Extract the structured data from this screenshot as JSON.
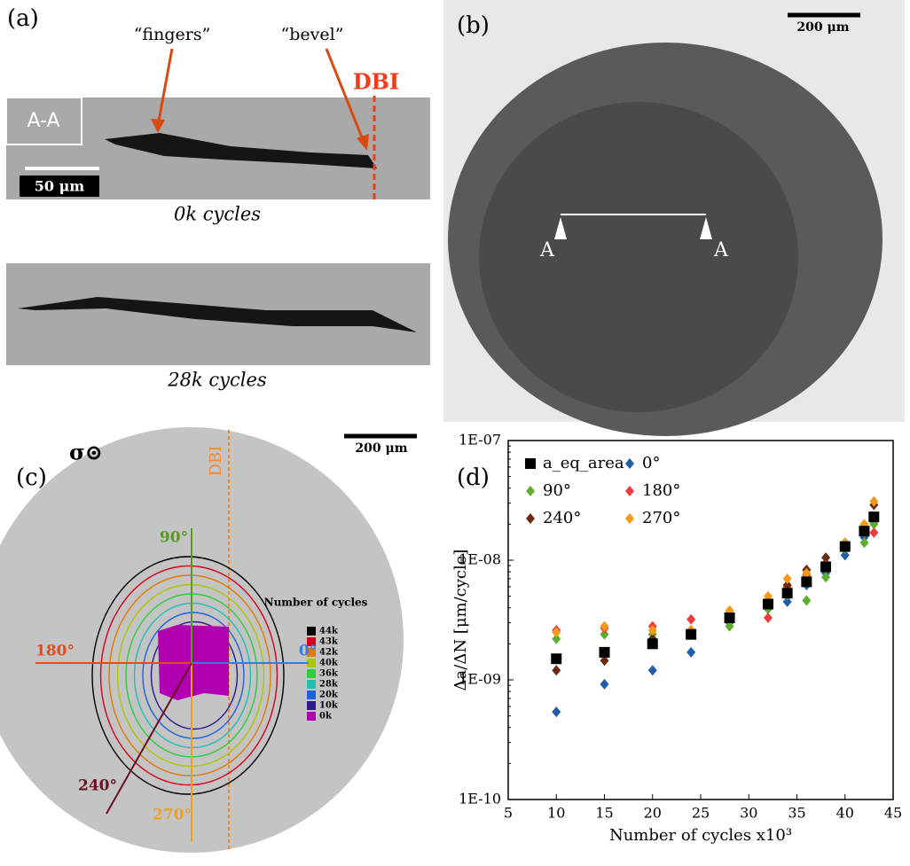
{
  "panel_a": {
    "label": "(a)",
    "annotations": [
      "“fingers”",
      "“bevel”"
    ],
    "dbi": "DBI",
    "section": "A-A",
    "scale_bar": "50 μm",
    "captions": [
      "0k cycles",
      "28k cycles"
    ]
  },
  "panel_b": {
    "label": "(b)",
    "scale_bar": "200 μm",
    "section_marks": [
      "A",
      "A"
    ]
  },
  "panel_c": {
    "label": "(c)",
    "symbol": "σ⊙",
    "dbi": "DBI",
    "scale_bar": "200 μm",
    "angles": [
      {
        "label": "90°",
        "color": "#5a9a1a"
      },
      {
        "label": "0°",
        "color": "#3a7ae0"
      },
      {
        "label": "180°",
        "color": "#e84a1a"
      },
      {
        "label": "270°",
        "color": "#f0a020"
      },
      {
        "label": "240°",
        "color": "#6a1020"
      }
    ],
    "legend_title": "Number of cycles",
    "legend": [
      {
        "name": "44k",
        "color": "#000000"
      },
      {
        "name": "43k",
        "color": "#d6001c"
      },
      {
        "name": "42k",
        "color": "#e07b00"
      },
      {
        "name": "40k",
        "color": "#a8c800"
      },
      {
        "name": "36k",
        "color": "#2fcc3c"
      },
      {
        "name": "28k",
        "color": "#1fc0b0"
      },
      {
        "name": "20k",
        "color": "#2060e0"
      },
      {
        "name": "10k",
        "color": "#2b1b8f"
      },
      {
        "name": "0k",
        "color": "#b000b0"
      }
    ]
  },
  "chart_data": {
    "type": "scatter",
    "label": "(d)",
    "x_label": "Number of cycles x10³",
    "y_label": "Δa/ΔN [μm/cycle]",
    "log_y": true,
    "x": [
      10,
      15,
      20,
      24,
      28,
      32,
      34,
      36,
      38,
      40,
      42,
      43
    ],
    "series": [
      {
        "name": "a_eq_area",
        "color": "#000000",
        "marker": "square",
        "values": [
          1.5e-09,
          1.7e-09,
          2e-09,
          2.4e-09,
          3.3e-09,
          4.3e-09,
          5.3e-09,
          6.6e-09,
          8.8e-09,
          1.3e-08,
          1.75e-08,
          2.3e-08
        ]
      },
      {
        "name": "0°",
        "color": "#1f5fa8",
        "marker": "diamond",
        "values": [
          5.4e-10,
          9.2e-10,
          1.2e-09,
          1.7e-09,
          3e-09,
          4.3e-09,
          4.5e-09,
          6.2e-09,
          7.8e-09,
          1.1e-08,
          1.55e-08,
          2.1e-08
        ]
      },
      {
        "name": "90°",
        "color": "#5cae2e",
        "marker": "diamond",
        "values": [
          2.2e-09,
          2.4e-09,
          2.4e-09,
          2.6e-09,
          2.8e-09,
          3.9e-09,
          5.1e-09,
          4.6e-09,
          7.2e-09,
          1.25e-08,
          1.4e-08,
          2e-08
        ]
      },
      {
        "name": "180°",
        "color": "#f03c3c",
        "marker": "diamond",
        "values": [
          2.6e-09,
          2.7e-09,
          2.8e-09,
          3.2e-09,
          3.5e-09,
          3.3e-09,
          6e-09,
          7.5e-09,
          9.5e-09,
          1.35e-08,
          1.7e-08,
          1.7e-08
        ]
      },
      {
        "name": "240°",
        "color": "#6e2a10",
        "marker": "diamond",
        "values": [
          1.2e-09,
          1.45e-09,
          2.2e-09,
          2.5e-09,
          3.6e-09,
          4.6e-09,
          6.2e-09,
          8.3e-09,
          1.05e-08,
          1.4e-08,
          1.9e-08,
          2.9e-08
        ]
      },
      {
        "name": "270°",
        "color": "#f39a1a",
        "marker": "diamond",
        "values": [
          2.5e-09,
          2.8e-09,
          2.6e-09,
          2.6e-09,
          3.8e-09,
          5e-09,
          7e-09,
          7.8e-09,
          9e-09,
          1.4e-08,
          2e-08,
          3.1e-08
        ]
      }
    ],
    "xlim": [
      5,
      45
    ],
    "xticks": [
      5,
      10,
      15,
      20,
      25,
      30,
      35,
      40,
      45
    ],
    "ylim": [
      1e-10,
      1e-07
    ],
    "yticks": [
      {
        "value": 1e-10,
        "label": "1E-10"
      },
      {
        "value": 1e-09,
        "label": "1E-09"
      },
      {
        "value": 1e-08,
        "label": "1E-08"
      },
      {
        "value": 1e-07,
        "label": "1E-07"
      }
    ]
  }
}
